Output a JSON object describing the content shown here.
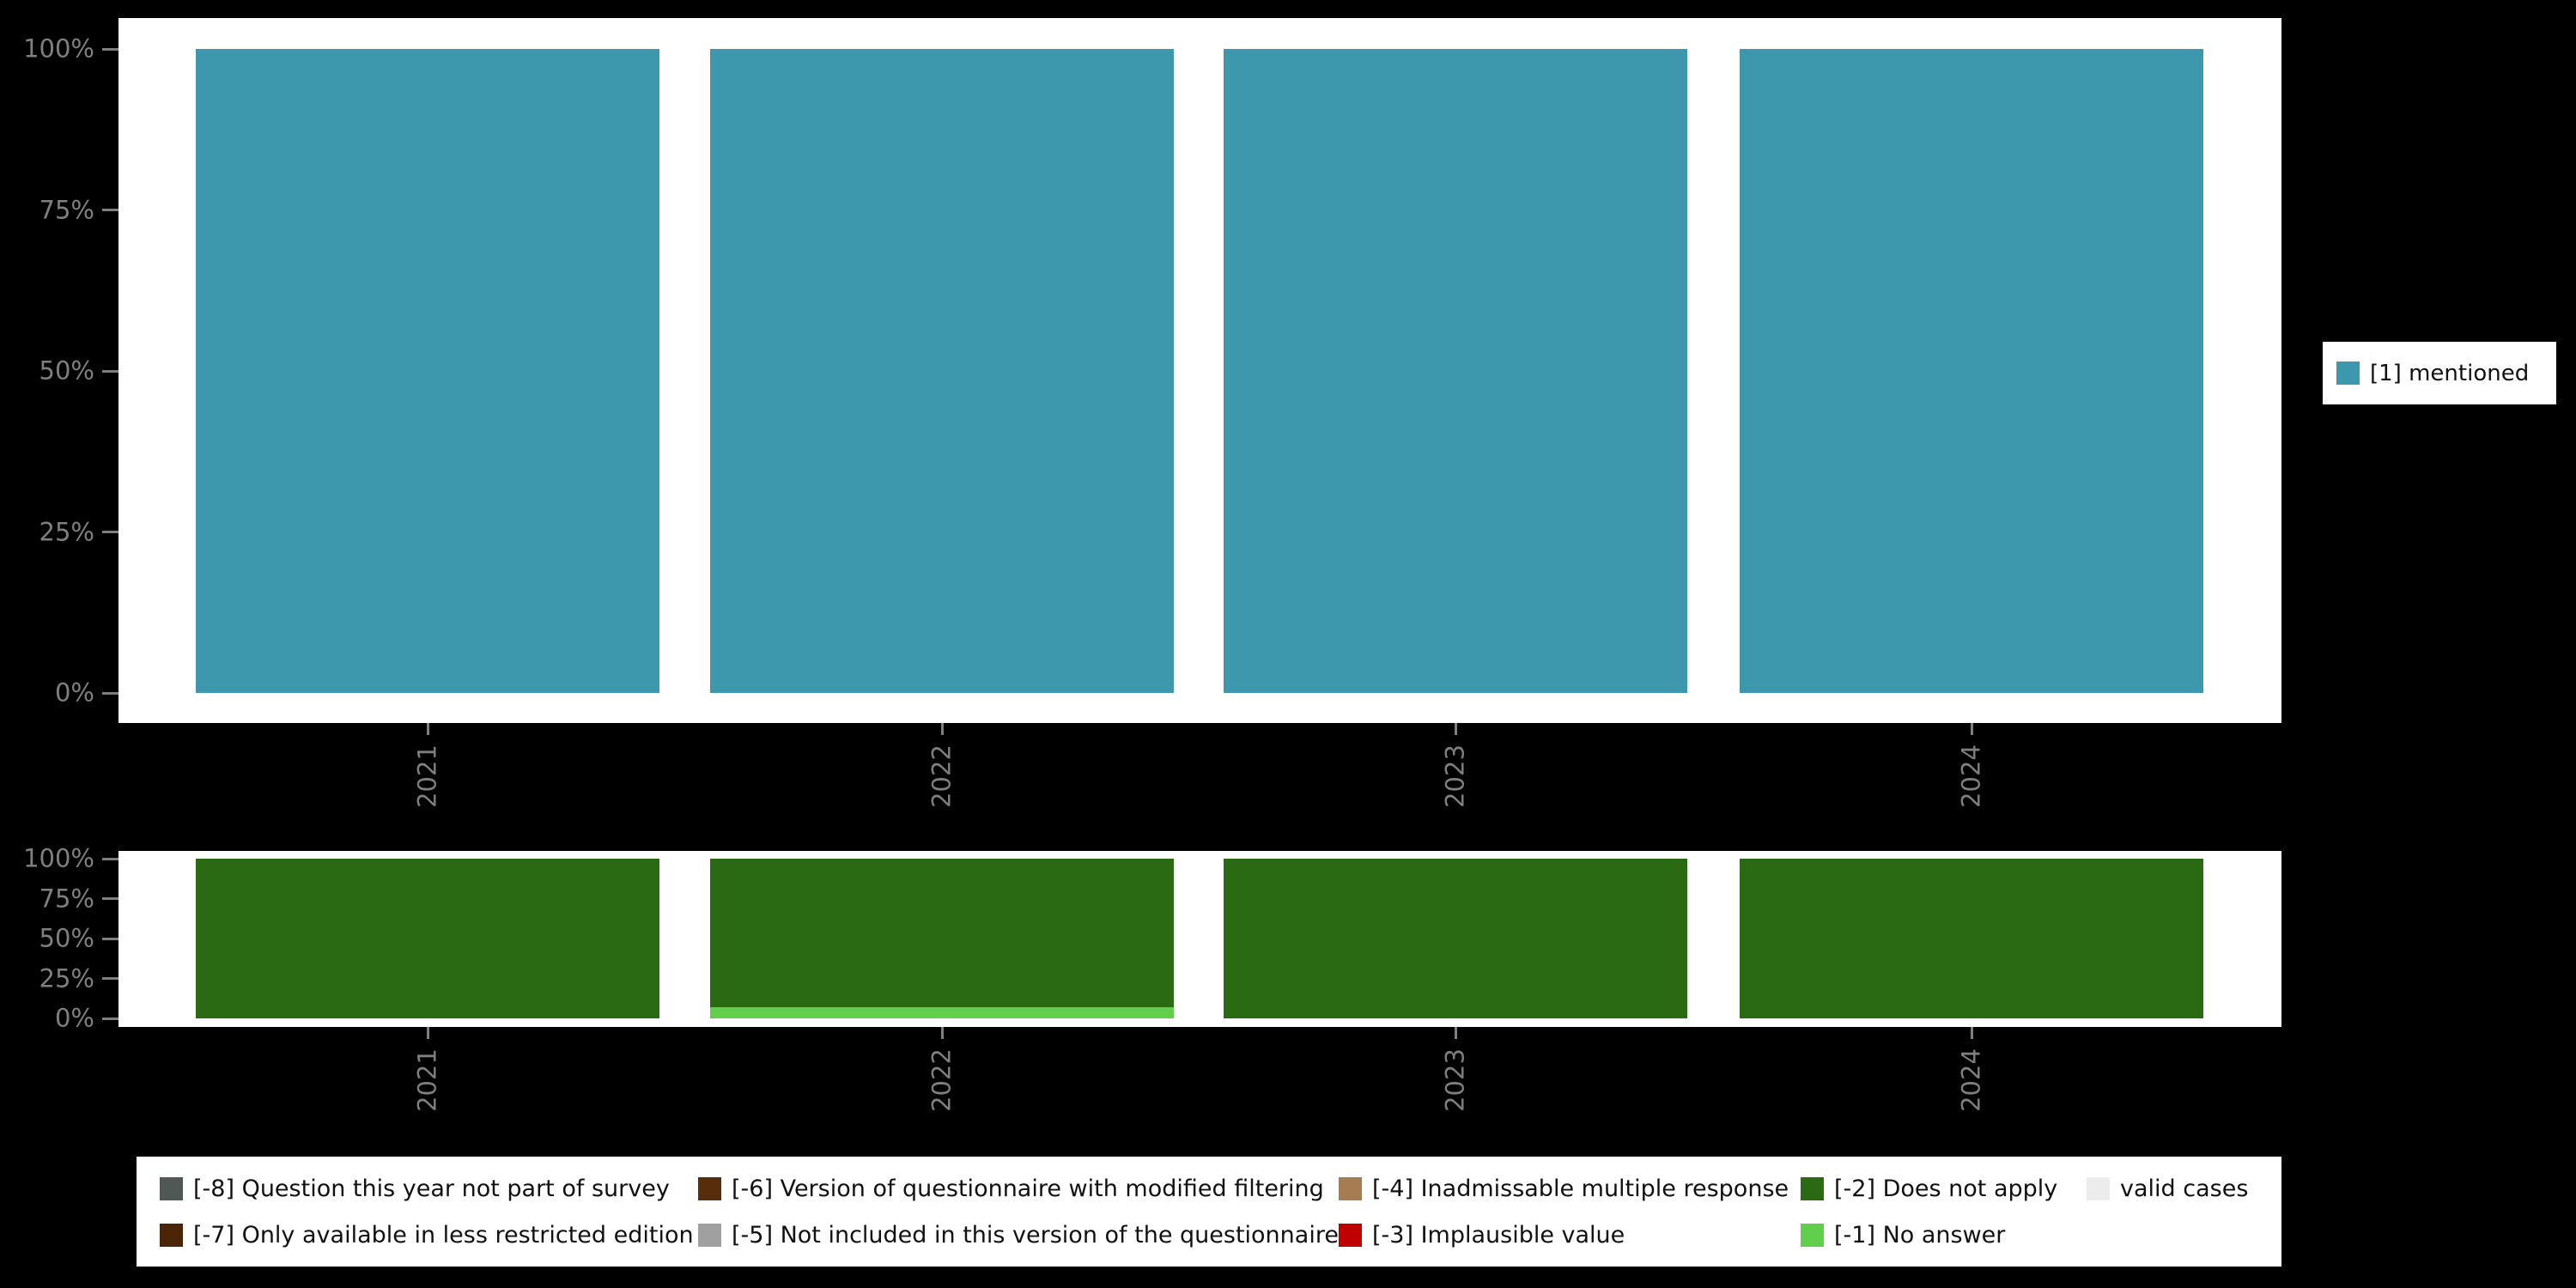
{
  "colors": {
    "background": "#000000",
    "panel_background": "#ffffff",
    "axis_text": "#7f7f7f",
    "tick": "#7f7f7f",
    "mentioned_teal": "#3d97ad",
    "does_not_apply_green": "#2a6a12",
    "no_answer_light_green": "#62cf4c"
  },
  "chart_data": [
    {
      "type": "bar",
      "variant": "stacked-percent",
      "title": "",
      "xlabel": "",
      "ylabel": "",
      "grid": false,
      "ylim": [
        0,
        100
      ],
      "categories": [
        "2021",
        "2022",
        "2023",
        "2024"
      ],
      "series": [
        {
          "name": "[1] mentioned",
          "color": "#3d97ad",
          "values": [
            100,
            100,
            100,
            100
          ]
        }
      ],
      "yticks": [
        {
          "value": 0,
          "label": "0%"
        },
        {
          "value": 25,
          "label": "25%"
        },
        {
          "value": 50,
          "label": "50%"
        },
        {
          "value": 75,
          "label": "75%"
        },
        {
          "value": 100,
          "label": "100%"
        }
      ],
      "legend_position": "right"
    },
    {
      "type": "bar",
      "variant": "stacked-percent",
      "title": "",
      "xlabel": "",
      "ylabel": "",
      "grid": false,
      "ylim": [
        0,
        100
      ],
      "categories": [
        "2021",
        "2022",
        "2023",
        "2024"
      ],
      "series": [
        {
          "name": "[-1] No answer",
          "color": "#62cf4c",
          "values": [
            0,
            7,
            0,
            0
          ]
        },
        {
          "name": "[-2] Does not apply",
          "color": "#2a6a12",
          "values": [
            100,
            93,
            100,
            100
          ]
        }
      ],
      "yticks": [
        {
          "value": 0,
          "label": "0%"
        },
        {
          "value": 25,
          "label": "25%"
        },
        {
          "value": 50,
          "label": "50%"
        },
        {
          "value": 75,
          "label": "75%"
        },
        {
          "value": 100,
          "label": "100%"
        }
      ],
      "legend_position": "bottom"
    }
  ],
  "right_legend": {
    "items": [
      {
        "label": "[1] mentioned",
        "color": "#3d97ad"
      }
    ]
  },
  "bottom_legend": {
    "items": [
      {
        "label": "[-8] Question this year not part of survey",
        "color": "#4f5855"
      },
      {
        "label": "[-6] Version of questionnaire with modified filtering",
        "color": "#572d0c"
      },
      {
        "label": "[-4] Inadmissable multiple response",
        "color": "#a67c52"
      },
      {
        "label": "[-2] Does not apply",
        "color": "#2a6a12"
      },
      {
        "label": "valid cases",
        "color": "#ececec"
      },
      {
        "label": "[-7] Only available in less restricted edition",
        "color": "#4a2507"
      },
      {
        "label": "[-5] Not included in this version of the questionnaire",
        "color": "#a0a0a0"
      },
      {
        "label": "[-3] Implausible value",
        "color": "#c00000"
      },
      {
        "label": "[-1] No answer",
        "color": "#62cf4c"
      }
    ]
  }
}
